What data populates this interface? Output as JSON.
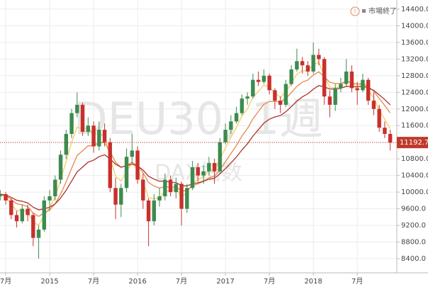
{
  "chart_data": {
    "type": "candlestick",
    "watermark": "DEU30, 1週",
    "watermark_sub": "DAX指数",
    "status": "市場終了",
    "up_color": "#3d8b4f",
    "down_color": "#c9302c",
    "last_color": "#c0392b",
    "x": [
      2014.4375,
      2014.5,
      2014.5625,
      2014.625,
      2014.6875,
      2014.75,
      2014.8125,
      2014.875,
      2014.9375,
      2015,
      2015.0625,
      2015.125,
      2015.1875,
      2015.25,
      2015.3125,
      2015.375,
      2015.4375,
      2015.5,
      2015.5625,
      2015.625,
      2015.6875,
      2015.75,
      2015.8125,
      2015.875,
      2015.9375,
      2016,
      2016.0625,
      2016.125,
      2016.1875,
      2016.25,
      2016.3125,
      2016.375,
      2016.4375,
      2016.5,
      2016.5625,
      2016.625,
      2016.6875,
      2016.75,
      2016.8125,
      2016.875,
      2016.9375,
      2017,
      2017.0625,
      2017.125,
      2017.1875,
      2017.25,
      2017.3125,
      2017.375,
      2017.4375,
      2017.5,
      2017.5625,
      2017.625,
      2017.6875,
      2017.75,
      2017.8125,
      2017.875,
      2017.9375,
      2018,
      2018.0625,
      2018.125,
      2018.1875,
      2018.25,
      2018.3125,
      2018.375,
      2018.4375,
      2018.5,
      2018.5625,
      2018.625,
      2018.6875,
      2018.75,
      2018.8125,
      2018.875
    ],
    "open": [
      9900,
      9950,
      9800,
      9450,
      9300,
      9600,
      9450,
      8900,
      9100,
      9800,
      9900,
      10300,
      10900,
      11400,
      11900,
      12100,
      11450,
      11600,
      11100,
      11500,
      11200,
      10100,
      9700,
      10100,
      10850,
      11000,
      10300,
      9800,
      9300,
      9800,
      9900,
      10300,
      10000,
      10200,
      9600,
      10100,
      10600,
      10400,
      10500,
      10700,
      10500,
      11200,
      11500,
      11700,
      11900,
      12250,
      12300,
      12700,
      12650,
      12800,
      12450,
      12200,
      12100,
      12600,
      12950,
      13150,
      13050,
      12900,
      13300,
      13200,
      12300,
      12100,
      12500,
      12600,
      12900,
      12500,
      12450,
      12700,
      12200,
      12000,
      11550,
      11400
    ],
    "high": [
      10050,
      10000,
      9850,
      9550,
      9700,
      9700,
      9500,
      9200,
      9900,
      10050,
      10400,
      11000,
      11500,
      12000,
      12400,
      12150,
      11800,
      11700,
      11700,
      11650,
      11300,
      10350,
      10200,
      11050,
      11400,
      11100,
      10450,
      9850,
      9950,
      10100,
      10450,
      10400,
      10350,
      10250,
      10200,
      10750,
      10700,
      10650,
      10850,
      10800,
      11300,
      11650,
      11850,
      12050,
      12350,
      12400,
      12850,
      12900,
      12950,
      12850,
      12500,
      12300,
      12700,
      13050,
      13450,
      13250,
      13150,
      13600,
      13450,
      13250,
      12450,
      12600,
      12750,
      13200,
      13050,
      12650,
      12850,
      12750,
      12400,
      12100,
      11700,
      11500
    ],
    "low": [
      9800,
      9700,
      9350,
      9150,
      9250,
      9300,
      8700,
      8400,
      9050,
      9550,
      9800,
      10200,
      10800,
      11300,
      11800,
      11350,
      11350,
      10950,
      11000,
      11100,
      10000,
      9350,
      9400,
      10000,
      10700,
      10200,
      9600,
      8700,
      9200,
      9650,
      9800,
      9900,
      9850,
      9200,
      9500,
      10050,
      10250,
      10200,
      10400,
      10200,
      10450,
      11150,
      11400,
      11650,
      11850,
      12100,
      12250,
      12550,
      12600,
      12350,
      12000,
      11900,
      12050,
      12550,
      12900,
      12850,
      12800,
      12850,
      13050,
      12100,
      11800,
      11950,
      12400,
      12550,
      12400,
      12100,
      12400,
      12100,
      11850,
      11450,
      11300,
      11000
    ],
    "close": [
      9950,
      9800,
      9450,
      9300,
      9600,
      9450,
      8900,
      9100,
      9800,
      9900,
      10300,
      10900,
      11400,
      11900,
      12100,
      11450,
      11600,
      11100,
      11500,
      11200,
      10100,
      9700,
      10100,
      10850,
      11000,
      10300,
      9800,
      9300,
      9800,
      9900,
      10300,
      10000,
      10200,
      9600,
      10100,
      10600,
      10400,
      10500,
      10700,
      10500,
      11200,
      11500,
      11700,
      11900,
      12250,
      12300,
      12700,
      12650,
      12800,
      12450,
      12200,
      12100,
      12600,
      12950,
      13150,
      13050,
      12900,
      13300,
      13200,
      12300,
      12100,
      12500,
      12600,
      12900,
      12500,
      12450,
      12700,
      12200,
      12000,
      11550,
      11400,
      11192.7
    ],
    "lines": [
      {
        "color": "#f2cf5b",
        "values": [
          9950,
          9890,
          9714,
          9548,
          9569,
          9521,
          9273,
          9204,
          9442,
          9625,
          9895,
          10297,
          10738,
          11203,
          11562,
          11517,
          11550,
          11370,
          11422,
          11333,
          10840,
          10384,
          10270,
          10502,
          10701,
          10541,
          10245,
          9867,
          9840,
          9864,
          10038,
          10023,
          10094,
          9896,
          9978,
          10227,
          10296,
          10378,
          10507,
          10504,
          10782,
          11069,
          11321,
          11553,
          11832,
          11999,
          12279,
          12427,
          12576,
          12526,
          12396,
          12278,
          12407,
          12624,
          12834,
          12920,
          12912,
          13067,
          13120,
          12792,
          12515,
          12509,
          12545,
          12687,
          12612,
          12547,
          12608,
          12445,
          12267,
          11980,
          11748,
          11526
        ]
      },
      {
        "color": "#e7874b",
        "values": [
          9950,
          9920,
          9826,
          9721,
          9697,
          9648,
          9498,
          9418,
          9494,
          9575,
          9720,
          9956,
          10245,
          10576,
          10881,
          10995,
          11116,
          11113,
          11190,
          11192,
          10974,
          10719,
          10595,
          10646,
          10717,
          10634,
          10467,
          10234,
          10147,
          10098,
          10138,
          10110,
          10128,
          10022,
          10038,
          10150,
          10200,
          10260,
          10348,
          10378,
          10542,
          10734,
          10927,
          11122,
          11348,
          11528,
          11762,
          11940,
          12112,
          12180,
          12184,
          12167,
          12254,
          12393,
          12544,
          12645,
          12696,
          12817,
          12894,
          12775,
          12640,
          12612,
          12610,
          12668,
          12634,
          12597,
          12618,
          12534,
          12427,
          12252,
          12082,
          11904
        ]
      },
      {
        "color": "#b0302f",
        "values": [
          9950,
          9932,
          9874,
          9805,
          9780,
          9740,
          9639,
          9574,
          9601,
          9637,
          9717,
          9859,
          10044,
          10267,
          10487,
          10603,
          10723,
          10768,
          10856,
          10897,
          10801,
          10669,
          10601,
          10631,
          10675,
          10630,
          10530,
          10382,
          10312,
          10263,
          10267,
          10235,
          10231,
          10155,
          10148,
          10202,
          10226,
          10259,
          10312,
          10335,
          10439,
          10566,
          10702,
          10846,
          11014,
          11162,
          11347,
          11503,
          11659,
          11754,
          11808,
          11843,
          11934,
          12056,
          12187,
          12291,
          12364,
          12476,
          12563,
          12531,
          12479,
          12482,
          12496,
          12544,
          12539,
          12528,
          12549,
          12507,
          12446,
          12338,
          12225,
          12101
        ]
      }
    ],
    "xlim": [
      2014.435,
      2018.95
    ],
    "ylim": [
      8060,
      14620
    ],
    "xticks": [
      {
        "value": 2014.5,
        "label": "7月"
      },
      2015,
      {
        "value": 2015.5,
        "label": "7月"
      },
      2016,
      {
        "value": 2016.5,
        "label": "7月"
      },
      2017,
      {
        "value": 2017.5,
        "label": "7月"
      },
      2018,
      {
        "value": 2018.5,
        "label": "7月"
      }
    ],
    "yticks": [
      {
        "value": 8400,
        "label": "8400.0"
      },
      {
        "value": 8800,
        "label": "8800.0"
      },
      {
        "value": 9200,
        "label": "9200.0"
      },
      {
        "value": 9600,
        "label": "9600.0"
      },
      {
        "value": 10000,
        "label": "10000.0"
      },
      {
        "value": 10400,
        "label": "10400.0"
      },
      {
        "value": 10800,
        "label": "10800.0"
      },
      {
        "value": 11200,
        "label": "11200.0"
      },
      {
        "value": 11600,
        "label": "11600.0"
      },
      {
        "value": 12000,
        "label": "12000.0"
      },
      {
        "value": 12400,
        "label": "12400.0"
      },
      {
        "value": 12800,
        "label": "12800.0"
      },
      {
        "value": 13200,
        "label": "13200.0"
      },
      {
        "value": 13600,
        "label": "13600.0"
      },
      {
        "value": 14000,
        "label": "14000.0"
      },
      {
        "value": 14400,
        "label": "14400.0"
      }
    ],
    "grid": true
  }
}
